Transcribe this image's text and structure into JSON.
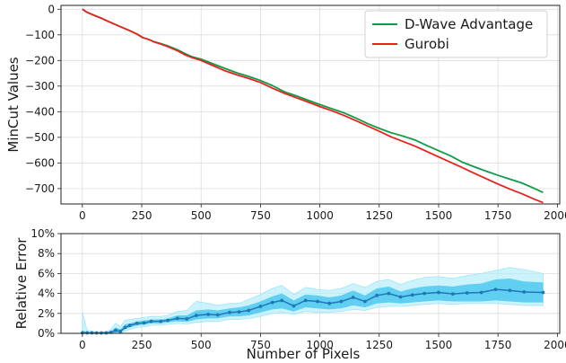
{
  "chart_data": [
    {
      "type": "line",
      "ylabel": "MinCut Values",
      "xlim": [
        -90,
        2010
      ],
      "ylim": [
        -760,
        15
      ],
      "xticks": [
        0,
        250,
        500,
        750,
        1000,
        1250,
        1500,
        1750,
        2000
      ],
      "xtick_labels": [
        "0",
        "250",
        "500",
        "750",
        "1000",
        "1250",
        "1500",
        "1750",
        "2000"
      ],
      "yticks": [
        0,
        -100,
        -200,
        -300,
        -400,
        -500,
        -600,
        -700
      ],
      "ytick_labels": [
        "0",
        "−100",
        "−200",
        "−300",
        "−400",
        "−500",
        "−600",
        "−700"
      ],
      "grid": true,
      "legend": "top-right",
      "series": [
        {
          "name": "D-Wave Advantage",
          "color": "#0f9b4a",
          "x": [
            0,
            20,
            50,
            80,
            110,
            140,
            170,
            200,
            230,
            255,
            280,
            300,
            330,
            360,
            400,
            430,
            460,
            500,
            550,
            600,
            650,
            700,
            750,
            800,
            850,
            900,
            950,
            1000,
            1050,
            1100,
            1150,
            1200,
            1250,
            1300,
            1350,
            1400,
            1450,
            1500,
            1550,
            1600,
            1650,
            1700,
            1750,
            1800,
            1850,
            1900,
            1940
          ],
          "y": [
            0,
            -12,
            -24,
            -35,
            -48,
            -60,
            -72,
            -84,
            -97,
            -111,
            -118,
            -126,
            -134,
            -143,
            -158,
            -172,
            -185,
            -195,
            -213,
            -231,
            -248,
            -262,
            -278,
            -298,
            -322,
            -338,
            -355,
            -372,
            -388,
            -404,
            -424,
            -446,
            -465,
            -482,
            -495,
            -510,
            -532,
            -552,
            -572,
            -597,
            -615,
            -632,
            -648,
            -663,
            -678,
            -698,
            -715
          ]
        },
        {
          "name": "Gurobi",
          "color": "#e8221b",
          "x": [
            0,
            20,
            50,
            80,
            110,
            140,
            170,
            200,
            230,
            255,
            280,
            300,
            330,
            360,
            400,
            430,
            460,
            500,
            550,
            600,
            650,
            700,
            750,
            800,
            850,
            900,
            950,
            1000,
            1050,
            1100,
            1150,
            1200,
            1250,
            1300,
            1350,
            1400,
            1450,
            1500,
            1550,
            1600,
            1650,
            1700,
            1750,
            1800,
            1850,
            1900,
            1940
          ],
          "y": [
            0,
            -12,
            -24,
            -35,
            -48,
            -60,
            -72,
            -84,
            -97,
            -111,
            -118,
            -127,
            -136,
            -146,
            -162,
            -177,
            -188,
            -200,
            -220,
            -240,
            -256,
            -270,
            -286,
            -308,
            -328,
            -345,
            -362,
            -380,
            -396,
            -414,
            -434,
            -455,
            -476,
            -498,
            -516,
            -534,
            -555,
            -576,
            -597,
            -618,
            -640,
            -661,
            -682,
            -702,
            -720,
            -740,
            -755
          ]
        }
      ]
    },
    {
      "type": "line",
      "xlabel": "Number of Pixels",
      "ylabel": "Relative Error",
      "xlim": [
        -90,
        2010
      ],
      "ylim": [
        0,
        10
      ],
      "xticks": [
        0,
        250,
        500,
        750,
        1000,
        1250,
        1500,
        1750,
        2000
      ],
      "xtick_labels": [
        "0",
        "250",
        "500",
        "750",
        "1000",
        "1250",
        "1500",
        "1750",
        "2000"
      ],
      "yticks": [
        0,
        2,
        4,
        6,
        8,
        10
      ],
      "ytick_labels": [
        "0%",
        "2%",
        "4%",
        "6%",
        "8%",
        "10%"
      ],
      "grid": true,
      "series": [
        {
          "color": "#1f77b4",
          "band_inner_color": "#3cc3ee",
          "band_outer_color": "#b6ecfb",
          "x": [
            0,
            20,
            40,
            60,
            80,
            100,
            120,
            140,
            160,
            180,
            200,
            230,
            260,
            290,
            330,
            360,
            400,
            440,
            480,
            530,
            570,
            620,
            660,
            700,
            750,
            800,
            840,
            890,
            940,
            990,
            1040,
            1090,
            1140,
            1190,
            1240,
            1290,
            1340,
            1390,
            1440,
            1500,
            1560,
            1620,
            1680,
            1740,
            1800,
            1860,
            1940
          ],
          "y": [
            0.05,
            0.05,
            0.05,
            0.04,
            0.04,
            0.05,
            0.1,
            0.3,
            0.2,
            0.6,
            0.8,
            1.0,
            1.05,
            1.2,
            1.2,
            1.3,
            1.5,
            1.45,
            1.8,
            1.9,
            1.85,
            2.1,
            2.15,
            2.3,
            2.7,
            3.1,
            3.3,
            2.75,
            3.3,
            3.2,
            3.0,
            3.2,
            3.6,
            3.2,
            3.8,
            4.0,
            3.65,
            3.85,
            4.0,
            4.1,
            3.95,
            4.05,
            4.1,
            4.4,
            4.3,
            4.15,
            4.1
          ],
          "band_inner_low": [
            0,
            0,
            0,
            0,
            0,
            0,
            0,
            0.1,
            0.05,
            0.4,
            0.6,
            0.8,
            0.85,
            1.0,
            1.0,
            1.1,
            1.2,
            1.15,
            1.4,
            1.5,
            1.5,
            1.7,
            1.7,
            1.8,
            2.1,
            2.4,
            2.5,
            2.2,
            2.6,
            2.5,
            2.4,
            2.5,
            2.8,
            2.6,
            3.0,
            3.1,
            3.0,
            3.1,
            3.2,
            3.3,
            3.2,
            3.2,
            3.2,
            3.3,
            3.2,
            3.1,
            3.1
          ],
          "band_inner_high": [
            0.3,
            0.1,
            0.1,
            0.05,
            0.05,
            0.08,
            0.2,
            0.6,
            0.4,
            0.9,
            1.0,
            1.2,
            1.3,
            1.4,
            1.4,
            1.5,
            1.8,
            1.8,
            2.3,
            2.4,
            2.3,
            2.5,
            2.6,
            2.8,
            3.2,
            3.7,
            4.0,
            3.3,
            3.9,
            3.8,
            3.6,
            3.8,
            4.3,
            3.8,
            4.5,
            4.7,
            4.2,
            4.5,
            4.7,
            4.8,
            4.7,
            4.9,
            5.0,
            5.4,
            5.5,
            5.2,
            5.1
          ],
          "band_outer_low": [
            0,
            0,
            0,
            0,
            0,
            0,
            0,
            0,
            0,
            0.2,
            0.4,
            0.6,
            0.65,
            0.8,
            0.85,
            0.9,
            1.0,
            0.95,
            1.1,
            1.2,
            1.2,
            1.4,
            1.4,
            1.5,
            1.7,
            2.0,
            2.1,
            1.9,
            2.2,
            2.1,
            2.1,
            2.2,
            2.4,
            2.3,
            2.6,
            2.7,
            2.7,
            2.8,
            2.9,
            3.0,
            2.9,
            3.0,
            3.0,
            3.0,
            2.9,
            2.8,
            2.8
          ],
          "band_outer_high": [
            2.1,
            0.3,
            0.2,
            0.1,
            0.1,
            0.15,
            0.4,
            1.0,
            0.7,
            1.3,
            1.4,
            1.5,
            1.6,
            1.7,
            1.7,
            1.8,
            2.2,
            2.3,
            3.2,
            3.0,
            2.8,
            3.0,
            3.0,
            3.4,
            3.9,
            4.5,
            4.8,
            3.9,
            4.6,
            4.4,
            4.3,
            4.5,
            5.0,
            4.6,
            5.2,
            5.4,
            4.9,
            5.3,
            5.6,
            5.7,
            5.5,
            5.8,
            6.0,
            6.3,
            6.6,
            6.4,
            6.0
          ]
        }
      ]
    }
  ]
}
